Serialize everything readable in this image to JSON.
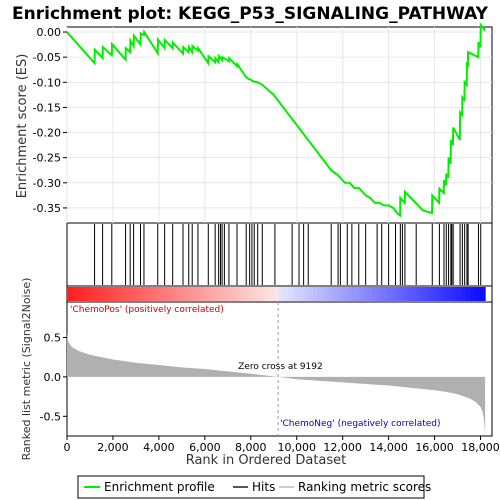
{
  "chart_data": {
    "type": "line",
    "title": "Enrichment plot: KEGG_P53_SIGNALING_PATHWAY",
    "top_panel": {
      "ylabel": "Enrichment score (ES)",
      "ylim": [
        -0.38,
        0.01
      ],
      "yticks": [
        "0.00",
        "-0.05",
        "-0.10",
        "-0.15",
        "-0.20",
        "-0.25",
        "-0.30",
        "-0.35"
      ],
      "ytick_values": [
        0.0,
        -0.05,
        -0.1,
        -0.15,
        -0.2,
        -0.25,
        -0.3,
        -0.35
      ],
      "line_color": "#00ee00",
      "series": [
        {
          "name": "Enrichment profile",
          "x": [
            0,
            1200,
            1210,
            1550,
            1560,
            1950,
            1960,
            2550,
            2560,
            2750,
            2760,
            2900,
            2910,
            3200,
            3210,
            3350,
            3360,
            3950,
            3960,
            4250,
            4260,
            4600,
            4610,
            5050,
            5060,
            5300,
            5310,
            5450,
            5460,
            5700,
            5710,
            6150,
            6160,
            6450,
            6460,
            6600,
            6610,
            6750,
            6760,
            7050,
            7060,
            7400,
            7410,
            7800,
            7900,
            8000,
            8100,
            8300,
            8500,
            9000,
            9500,
            10000,
            10500,
            11000,
            11500,
            11800,
            12100,
            12300,
            12500,
            12700,
            13000,
            13200,
            13400,
            13600,
            13800,
            14000,
            14200,
            14400,
            14500,
            14510,
            14700,
            14710,
            15500,
            15890,
            15900,
            16200,
            16210,
            16400,
            16410,
            16500,
            16510,
            16600,
            16610,
            16700,
            16710,
            16800,
            16810,
            17100,
            17110,
            17200,
            17210,
            17300,
            17310,
            17400,
            17410,
            17450,
            17460,
            17900,
            17910,
            18000,
            18010,
            18200
          ],
          "y": [
            0.0,
            -0.062,
            -0.035,
            -0.052,
            -0.03,
            -0.046,
            -0.024,
            -0.055,
            -0.032,
            -0.04,
            -0.017,
            -0.028,
            -0.007,
            -0.025,
            -0.003,
            -0.006,
            0.0,
            -0.042,
            -0.015,
            -0.032,
            -0.016,
            -0.032,
            -0.021,
            -0.043,
            -0.03,
            -0.04,
            -0.03,
            -0.04,
            -0.028,
            -0.037,
            -0.032,
            -0.062,
            -0.048,
            -0.06,
            -0.052,
            -0.06,
            -0.048,
            -0.056,
            -0.05,
            -0.058,
            -0.052,
            -0.068,
            -0.064,
            -0.09,
            -0.093,
            -0.095,
            -0.098,
            -0.1,
            -0.105,
            -0.125,
            -0.155,
            -0.185,
            -0.215,
            -0.245,
            -0.275,
            -0.285,
            -0.3,
            -0.3,
            -0.31,
            -0.31,
            -0.325,
            -0.33,
            -0.34,
            -0.34,
            -0.345,
            -0.345,
            -0.35,
            -0.362,
            -0.365,
            -0.33,
            -0.34,
            -0.318,
            -0.355,
            -0.36,
            -0.325,
            -0.34,
            -0.312,
            -0.32,
            -0.295,
            -0.305,
            -0.282,
            -0.29,
            -0.25,
            -0.262,
            -0.215,
            -0.225,
            -0.19,
            -0.215,
            -0.16,
            -0.165,
            -0.13,
            -0.135,
            -0.1,
            -0.105,
            -0.06,
            -0.07,
            -0.04,
            -0.05,
            -0.02,
            -0.03,
            0.014,
            0.003
          ]
        }
      ]
    },
    "hits": [
      1200,
      1550,
      1950,
      2550,
      2750,
      2900,
      3200,
      3350,
      3950,
      4250,
      4600,
      5050,
      5300,
      5450,
      5700,
      6150,
      6450,
      6600,
      6680,
      6750,
      6850,
      7050,
      7400,
      7800,
      7950,
      8050,
      8150,
      8300,
      8500,
      9050,
      9800,
      10100,
      10300,
      10500,
      11500,
      11800,
      11900,
      12200,
      12400,
      12700,
      13000,
      13500,
      13700,
      14000,
      14300,
      14510,
      14600,
      14710,
      15200,
      15900,
      16210,
      16410,
      16510,
      16610,
      16710,
      16750,
      16810,
      17110,
      17210,
      17310,
      17410,
      17460,
      17910,
      18010
    ],
    "ranked_metric": {
      "ylabel": "Ranked list metric (Signal2Noise)",
      "ylim": [
        -0.75,
        0.95
      ],
      "yticks": [
        "0.5",
        "0.0",
        "-0.5"
      ],
      "ytick_values": [
        0.5,
        0.0,
        -0.5
      ],
      "x": [
        0,
        50,
        200,
        500,
        1000,
        2000,
        3000,
        4000,
        5000,
        6000,
        7000,
        8000,
        9192,
        10000,
        11000,
        12000,
        13000,
        14000,
        15000,
        16000,
        16500,
        17000,
        17500,
        17800,
        18000,
        18100,
        18150,
        18200
      ],
      "values": [
        0.55,
        0.45,
        0.38,
        0.33,
        0.28,
        0.22,
        0.18,
        0.15,
        0.12,
        0.1,
        0.07,
        0.04,
        0.0,
        -0.03,
        -0.05,
        -0.07,
        -0.09,
        -0.11,
        -0.14,
        -0.17,
        -0.19,
        -0.22,
        -0.27,
        -0.32,
        -0.38,
        -0.45,
        -0.55,
        -0.72
      ],
      "fill_color": "#b0b0b0",
      "pos_label": "'ChemoPos' (positively correlated)",
      "neg_label": "'ChemoNeg' (negatively correlated)",
      "pos_color": "#cc0000",
      "neg_color": "#0000cc",
      "zero_cross_label": "Zero cross at 9192",
      "zero_cross": 9192
    },
    "xlabel": "Rank in Ordered Dataset",
    "xlim": [
      0,
      18500
    ],
    "xticks": [
      "0",
      "2,000",
      "4,000",
      "6,000",
      "8,000",
      "10,000",
      "12,000",
      "14,000",
      "16,000",
      "18,000"
    ],
    "xtick_values": [
      0,
      2000,
      4000,
      6000,
      8000,
      10000,
      12000,
      14000,
      16000,
      18000
    ],
    "legend": {
      "placement": "bottom",
      "items": [
        {
          "label": "Enrichment profile",
          "color": "#00ee00"
        },
        {
          "label": "Hits",
          "color": "#555555"
        },
        {
          "label": "Ranking metric scores",
          "color": "#cccccc"
        }
      ]
    }
  }
}
